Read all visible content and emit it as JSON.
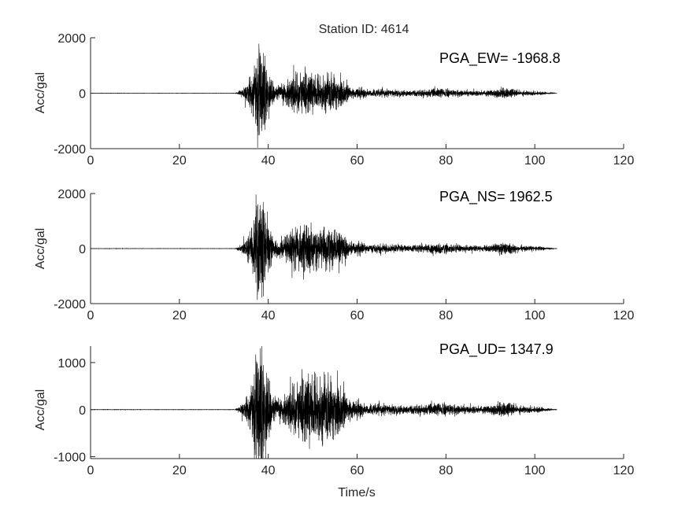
{
  "chart_data": [
    {
      "type": "line",
      "title": "Station ID: 4614",
      "ylabel": "Acc/gal",
      "xlabel": "",
      "annotation": "PGA_EW= -1968.8",
      "pga": -1968.8,
      "xlim": [
        0,
        120
      ],
      "ylim": [
        -2000,
        2000
      ],
      "xticks": [
        "0",
        "20",
        "40",
        "60",
        "80",
        "100",
        "120"
      ],
      "yticks": [
        "-2000",
        "0",
        "2000"
      ],
      "ytick_values": [
        -2000,
        0,
        2000
      ],
      "record_duration_s": [
        0,
        105
      ],
      "grid": false,
      "color": "#000000"
    },
    {
      "type": "line",
      "ylabel": "Acc/gal",
      "xlabel": "",
      "annotation": "PGA_NS= 1962.5",
      "pga": 1962.5,
      "xlim": [
        0,
        120
      ],
      "ylim": [
        -2000,
        2000
      ],
      "xticks": [
        "0",
        "20",
        "40",
        "60",
        "80",
        "100",
        "120"
      ],
      "yticks": [
        "-2000",
        "0",
        "2000"
      ],
      "ytick_values": [
        -2000,
        0,
        2000
      ],
      "record_duration_s": [
        0,
        105
      ],
      "grid": false,
      "color": "#000000"
    },
    {
      "type": "line",
      "ylabel": "Acc/gal",
      "xlabel": "Time/s",
      "annotation": "PGA_UD= 1347.9",
      "pga": 1347.9,
      "xlim": [
        0,
        120
      ],
      "ylim": [
        -1040,
        1350
      ],
      "xticks": [
        "0",
        "20",
        "40",
        "60",
        "80",
        "100",
        "120"
      ],
      "yticks": [
        "-1000",
        "0",
        "1000"
      ],
      "ytick_values": [
        -1000,
        0,
        1000
      ],
      "record_duration_s": [
        0,
        105
      ],
      "grid": false,
      "color": "#000000"
    }
  ]
}
